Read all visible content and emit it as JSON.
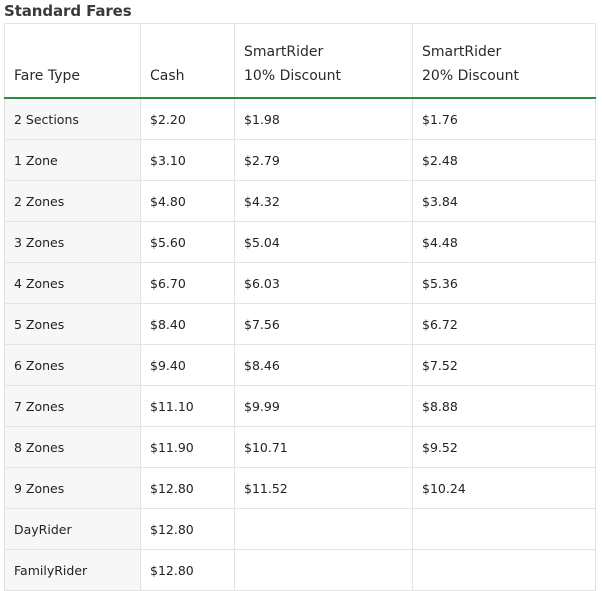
{
  "caption": "Standard Fares",
  "headers": {
    "fare_type": "Fare Type",
    "cash": "Cash",
    "sr10_line1": "SmartRider",
    "sr10_line2": "10% Discount",
    "sr20_line1": "SmartRider",
    "sr20_line2": "20% Discount"
  },
  "rows": [
    {
      "type": "2 Sections",
      "cash": "$2.20",
      "sr10": "$1.98",
      "sr20": "$1.76"
    },
    {
      "type": "1 Zone",
      "cash": "$3.10",
      "sr10": "$2.79",
      "sr20": "$2.48"
    },
    {
      "type": "2 Zones",
      "cash": "$4.80",
      "sr10": "$4.32",
      "sr20": "$3.84"
    },
    {
      "type": "3 Zones",
      "cash": "$5.60",
      "sr10": "$5.04",
      "sr20": "$4.48"
    },
    {
      "type": "4 Zones",
      "cash": "$6.70",
      "sr10": "$6.03",
      "sr20": "$5.36"
    },
    {
      "type": "5 Zones",
      "cash": "$8.40",
      "sr10": "$7.56",
      "sr20": "$6.72"
    },
    {
      "type": "6 Zones",
      "cash": "$9.40",
      "sr10": "$8.46",
      "sr20": "$7.52"
    },
    {
      "type": "7 Zones",
      "cash": "$11.10",
      "sr10": "$9.99",
      "sr20": "$8.88"
    },
    {
      "type": "8 Zones",
      "cash": "$11.90",
      "sr10": "$10.71",
      "sr20": "$9.52"
    },
    {
      "type": "9 Zones",
      "cash": "$12.80",
      "sr10": "$11.52",
      "sr20": "$10.24"
    },
    {
      "type": "DayRider",
      "cash": "$12.80",
      "sr10": "",
      "sr20": ""
    },
    {
      "type": "FamilyRider",
      "cash": "$12.80",
      "sr10": "",
      "sr20": ""
    }
  ],
  "colors": {
    "header_rule": "#2e8b3e",
    "first_column_bg": "#f7f7f7",
    "cell_border": "#e3e3e3"
  }
}
